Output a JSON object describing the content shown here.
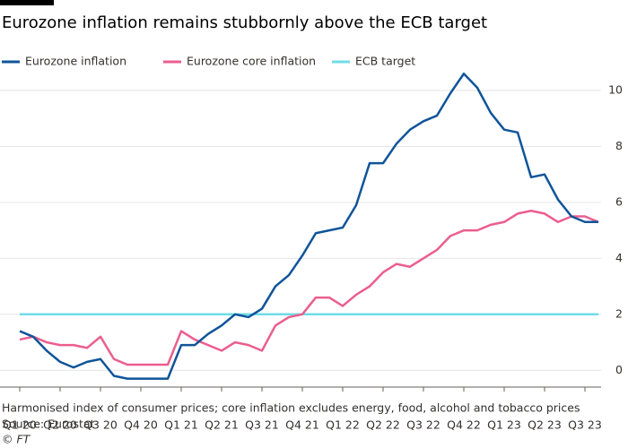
{
  "chart_data": {
    "type": "line",
    "title": "Eurozone inflation remains stubbornly above the ECB target",
    "categories": [
      "Q1 20",
      null,
      null,
      "Q2 20",
      null,
      null,
      "Q3 20",
      null,
      null,
      "Q4 20",
      null,
      null,
      "Q1 21",
      null,
      null,
      "Q2 21",
      null,
      null,
      "Q3 21",
      null,
      null,
      "Q4 21",
      null,
      null,
      "Q1 22",
      null,
      null,
      "Q2 22",
      null,
      null,
      "Q3 22",
      null,
      null,
      "Q4 22",
      null,
      null,
      "Q1 23",
      null,
      null,
      "Q2 23",
      null,
      null,
      "Q3 23",
      null
    ],
    "series": [
      {
        "name": "Eurozone inflation",
        "color": "#0f5499",
        "values": [
          1.4,
          1.2,
          0.7,
          0.3,
          0.1,
          0.3,
          0.4,
          -0.2,
          -0.3,
          -0.3,
          -0.3,
          -0.3,
          0.9,
          0.9,
          1.3,
          1.6,
          2.0,
          1.9,
          2.2,
          3.0,
          3.4,
          4.1,
          4.9,
          5.0,
          5.1,
          5.9,
          7.4,
          7.4,
          8.1,
          8.6,
          8.9,
          9.1,
          9.9,
          10.6,
          10.1,
          9.2,
          8.6,
          8.5,
          6.9,
          7.0,
          6.1,
          5.5,
          5.3,
          5.3
        ]
      },
      {
        "name": "Eurozone core inflation",
        "color": "#eb5e8d",
        "values": [
          1.1,
          1.2,
          1.0,
          0.9,
          0.9,
          0.8,
          1.2,
          0.4,
          0.2,
          0.2,
          0.2,
          0.2,
          1.4,
          1.1,
          0.9,
          0.7,
          1.0,
          0.9,
          0.7,
          1.6,
          1.9,
          2.0,
          2.6,
          2.6,
          2.3,
          2.7,
          3.0,
          3.5,
          3.8,
          3.7,
          4.0,
          4.3,
          4.8,
          5.0,
          5.0,
          5.2,
          5.3,
          5.6,
          5.7,
          5.6,
          5.3,
          5.5,
          5.5,
          5.3
        ]
      },
      {
        "name": "ECB target",
        "color": "#70dce6",
        "values": [
          2,
          2,
          2,
          2,
          2,
          2,
          2,
          2,
          2,
          2,
          2,
          2,
          2,
          2,
          2,
          2,
          2,
          2,
          2,
          2,
          2,
          2,
          2,
          2,
          2,
          2,
          2,
          2,
          2,
          2,
          2,
          2,
          2,
          2,
          2,
          2,
          2,
          2,
          2,
          2,
          2,
          2,
          2,
          2
        ]
      }
    ],
    "ylim": [
      -0.6,
      10.8
    ],
    "yticks": [
      0,
      2,
      4,
      6,
      8,
      10
    ],
    "grid": true,
    "note": "Harmonised index of consumer prices; core inflation excludes energy, food, alcohol and tobacco prices",
    "source": "Source: Eurostat",
    "credit": "© FT"
  }
}
